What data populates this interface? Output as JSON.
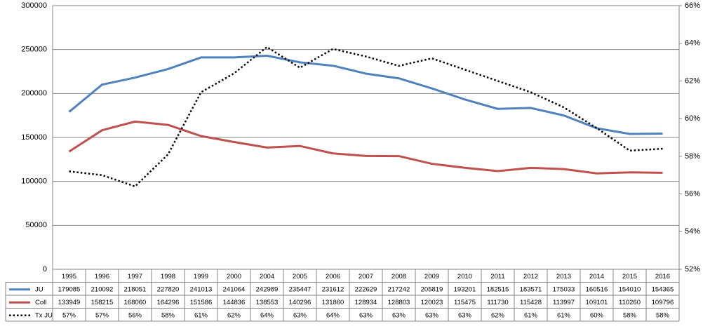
{
  "chart_data": {
    "type": "line",
    "categories": [
      "1995",
      "1996",
      "1997",
      "1998",
      "1999",
      "2000",
      "2004",
      "2005",
      "2006",
      "2007",
      "2008",
      "2009",
      "2010",
      "2011",
      "2012",
      "2013",
      "2014",
      "2015",
      "2016"
    ],
    "series": [
      {
        "name": "JU",
        "color": "#4f81bd",
        "values": [
          179085,
          210092,
          218051,
          227820,
          241013,
          241064,
          242989,
          235447,
          231612,
          222629,
          217242,
          205819,
          193201,
          182515,
          183571,
          175033,
          160516,
          154010,
          154365
        ]
      },
      {
        "name": "Coll",
        "color": "#c0504d",
        "values": [
          133949,
          158215,
          168060,
          164296,
          151586,
          144836,
          138553,
          140296,
          131860,
          128934,
          128803,
          120023,
          115475,
          111730,
          115428,
          113997,
          109101,
          110260,
          109796
        ]
      },
      {
        "name": "Tx JU",
        "color": "#000000",
        "axis": "y2",
        "dotted": true,
        "values": [
          57.2,
          57.0,
          56.4,
          58.1,
          61.4,
          62.4,
          63.8,
          62.7,
          63.7,
          63.3,
          62.8,
          63.2,
          62.6,
          62.0,
          61.4,
          60.6,
          59.5,
          58.3,
          58.4
        ],
        "value_labels": [
          "57%",
          "57%",
          "56%",
          "58%",
          "61%",
          "62%",
          "64%",
          "63%",
          "64%",
          "63%",
          "63%",
          "63%",
          "63%",
          "62%",
          "61%",
          "61%",
          "60%",
          "58%",
          "58%"
        ]
      }
    ],
    "ylim": [
      0,
      300000
    ],
    "yticks": [
      0,
      50000,
      100000,
      150000,
      200000,
      250000,
      300000
    ],
    "y2lim": [
      52,
      66
    ],
    "y2ticks": [
      {
        "value": 52,
        "label": "52%"
      },
      {
        "value": 54,
        "label": "54%"
      },
      {
        "value": 56,
        "label": "56%"
      },
      {
        "value": 58,
        "label": "58%"
      },
      {
        "value": 60,
        "label": "60%"
      },
      {
        "value": 62,
        "label": "62%"
      },
      {
        "value": 64,
        "label": "64%"
      },
      {
        "value": 66,
        "label": "66%"
      }
    ],
    "grid": true,
    "data_table": true
  }
}
